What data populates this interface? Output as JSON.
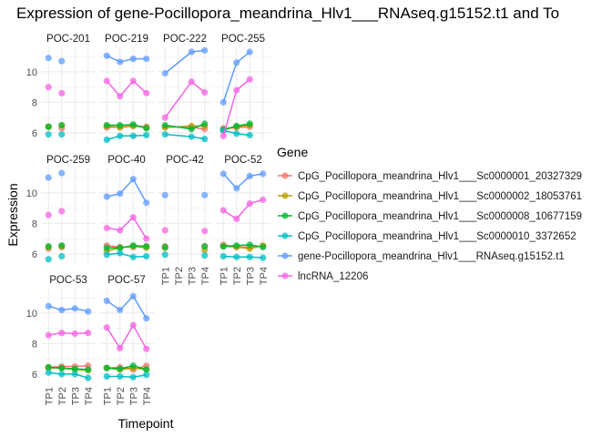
{
  "chart_data": {
    "type": "line",
    "title": "Expression of gene-Pocillopora_meandrina_Hlv1___RNAseq.g15152.t1 and To",
    "xlabel": "Timepoint",
    "ylabel": "Expression",
    "categories": [
      "TP1",
      "TP2",
      "TP3",
      "TP4"
    ],
    "ylim": [
      5.4,
      11.6
    ],
    "yticks": [
      6,
      8,
      10
    ],
    "grid": true,
    "legend": {
      "title": "Gene",
      "position": "right",
      "entries": [
        {
          "name": "CpG_Pocillopora_meandrina_Hlv1___Sc0000001_20327329",
          "color": "#F8766D"
        },
        {
          "name": "CpG_Pocillopora_meandrina_Hlv1___Sc0000002_18053761",
          "color": "#B79F00"
        },
        {
          "name": "CpG_Pocillopora_meandrina_Hlv1___Sc0000008_10677159",
          "color": "#00BA38"
        },
        {
          "name": "CpG_Pocillopora_meandrina_Hlv1___Sc0000010_3372652",
          "color": "#00BFC4"
        },
        {
          "name": "gene-Pocillopora_meandrina_Hlv1___RNAseq.g15152.t1",
          "color": "#619CFF"
        },
        {
          "name": "lncRNA_12206",
          "color": "#F564E3"
        }
      ]
    },
    "panels": [
      {
        "name": "POC-201",
        "connected": false,
        "values": [
          [
            6.4,
            6.3,
            null,
            null
          ],
          [
            6.4,
            6.5,
            null,
            null
          ],
          [
            6.4,
            6.5,
            null,
            null
          ],
          [
            5.9,
            5.9,
            null,
            null
          ],
          [
            10.9,
            10.7,
            null,
            null
          ],
          [
            9.0,
            8.6,
            null,
            null
          ]
        ]
      },
      {
        "name": "POC-219",
        "connected": true,
        "values": [
          [
            6.35,
            6.4,
            6.45,
            6.4
          ],
          [
            6.45,
            6.35,
            6.45,
            6.35
          ],
          [
            6.5,
            6.5,
            6.55,
            6.3
          ],
          [
            5.55,
            5.8,
            5.8,
            5.85
          ],
          [
            11.05,
            10.65,
            10.85,
            10.85
          ],
          [
            9.4,
            8.4,
            9.4,
            8.6
          ]
        ]
      },
      {
        "name": "POC-222",
        "connected": true,
        "values": [
          [
            6.4,
            null,
            6.35,
            6.25
          ],
          [
            6.35,
            null,
            6.45,
            6.45
          ],
          [
            6.5,
            null,
            6.25,
            6.6
          ],
          [
            5.9,
            null,
            5.75,
            5.6
          ],
          [
            9.9,
            null,
            11.3,
            11.4
          ],
          [
            7.0,
            null,
            9.35,
            8.65
          ]
        ]
      },
      {
        "name": "POC-255",
        "connected": true,
        "values": [
          [
            6.3,
            6.35,
            6.4,
            null
          ],
          [
            6.2,
            6.4,
            6.5,
            null
          ],
          [
            6.2,
            6.45,
            6.6,
            null
          ],
          [
            6.15,
            5.95,
            5.85,
            null
          ],
          [
            8.0,
            10.6,
            11.3,
            null
          ],
          [
            5.8,
            8.8,
            9.5,
            null
          ]
        ]
      },
      {
        "name": "POC-259",
        "connected": false,
        "values": [
          [
            6.35,
            6.45,
            null,
            null
          ],
          [
            6.45,
            6.5,
            null,
            null
          ],
          [
            6.5,
            6.55,
            null,
            null
          ],
          [
            5.65,
            5.85,
            null,
            null
          ],
          [
            11.0,
            11.3,
            null,
            null
          ],
          [
            8.55,
            8.8,
            null,
            null
          ]
        ]
      },
      {
        "name": "POC-40",
        "connected": true,
        "values": [
          [
            6.55,
            6.45,
            6.45,
            6.5
          ],
          [
            6.2,
            6.4,
            6.5,
            6.4
          ],
          [
            6.4,
            6.4,
            6.55,
            6.5
          ],
          [
            5.95,
            6.05,
            5.8,
            5.85
          ],
          [
            9.75,
            9.95,
            10.9,
            9.35
          ],
          [
            7.7,
            7.55,
            8.4,
            7.0
          ]
        ]
      },
      {
        "name": "POC-42",
        "connected": false,
        "values": [
          [
            6.5,
            null,
            null,
            6.5
          ],
          [
            6.4,
            null,
            null,
            6.25
          ],
          [
            6.45,
            null,
            null,
            6.5
          ],
          [
            5.95,
            null,
            null,
            5.9
          ],
          [
            9.85,
            null,
            null,
            9.85
          ],
          [
            7.55,
            null,
            null,
            7.5
          ]
        ]
      },
      {
        "name": "POC-52",
        "connected": true,
        "values": [
          [
            6.6,
            6.45,
            6.45,
            6.5
          ],
          [
            6.5,
            6.45,
            6.35,
            6.55
          ],
          [
            6.5,
            6.55,
            6.6,
            6.45
          ],
          [
            5.85,
            5.8,
            5.8,
            5.75
          ],
          [
            11.25,
            10.3,
            11.1,
            11.25
          ],
          [
            8.85,
            8.3,
            9.3,
            9.55
          ]
        ]
      },
      {
        "name": "POC-53",
        "connected": true,
        "values": [
          [
            6.45,
            6.5,
            6.5,
            6.55
          ],
          [
            6.4,
            6.4,
            6.3,
            6.25
          ],
          [
            6.45,
            6.4,
            6.35,
            6.3
          ],
          [
            6.1,
            6.0,
            6.0,
            5.75
          ],
          [
            10.45,
            10.2,
            10.3,
            10.1
          ],
          [
            8.55,
            8.7,
            8.65,
            8.7
          ]
        ]
      },
      {
        "name": "POC-57",
        "connected": true,
        "values": [
          [
            6.4,
            6.45,
            6.3,
            6.55
          ],
          [
            6.4,
            6.3,
            6.4,
            6.3
          ],
          [
            6.4,
            6.35,
            6.55,
            6.3
          ],
          [
            5.85,
            5.85,
            5.8,
            5.95
          ],
          [
            10.8,
            10.2,
            11.1,
            9.65
          ],
          [
            9.05,
            7.7,
            9.2,
            7.65
          ]
        ]
      }
    ]
  }
}
